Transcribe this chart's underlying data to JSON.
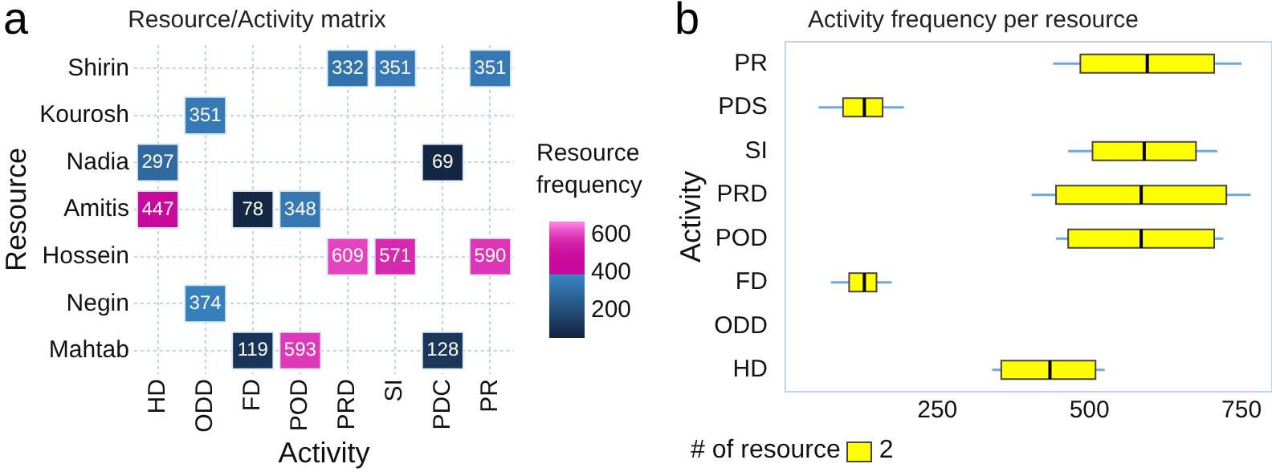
{
  "chart_data": [
    {
      "type": "heatmap",
      "title": "Resource/Activity matrix",
      "xlabel": "Activity",
      "ylabel": "Resource",
      "clabel": "Resource frequency",
      "categories": [
        "HD",
        "ODD",
        "FD",
        "POD",
        "PRD",
        "SI",
        "PDC",
        "PR"
      ],
      "y_categories": [
        "Shirin",
        "Kourosh",
        "Nadia",
        "Amitis",
        "Hossein",
        "Negin",
        "Mahtab"
      ],
      "cells": [
        [
          null,
          null,
          null,
          null,
          332,
          351,
          null,
          351
        ],
        [
          null,
          351,
          null,
          null,
          null,
          null,
          null,
          null
        ],
        [
          297,
          null,
          null,
          null,
          null,
          null,
          69,
          null
        ],
        [
          447,
          null,
          78,
          348,
          null,
          null,
          null,
          null
        ],
        [
          null,
          null,
          null,
          null,
          609,
          571,
          null,
          590
        ],
        [
          null,
          374,
          null,
          null,
          null,
          null,
          null,
          null
        ],
        [
          null,
          null,
          119,
          593,
          null,
          null,
          128,
          null
        ]
      ],
      "clim": [
        60,
        670
      ],
      "cticks": [
        200,
        400,
        600
      ],
      "grid": true,
      "data_labels": true,
      "annotations": [
        "a"
      ]
    },
    {
      "type": "box",
      "title": "Activity frequency per resource",
      "ylabel": "Activity",
      "orientation": "horizontal",
      "categories": [
        "PR",
        "PDS",
        "SI",
        "PRD",
        "POD",
        "FD",
        "ODD",
        "HD"
      ],
      "xlim": [
        0,
        800
      ],
      "xticks": [
        250,
        500,
        750
      ],
      "legend": "bottom",
      "legend_title": "# of resource",
      "annotations": [
        "b"
      ],
      "series": [
        {
          "name": "2",
          "color": "#ffff00",
          "boxes": [
            {
              "low": 440,
              "q1": 485,
              "median": 595,
              "q3": 705,
              "high": 750
            },
            {
              "low": 55,
              "q1": 95,
              "median": 130,
              "q3": 160,
              "high": 195
            },
            {
              "low": 465,
              "q1": 505,
              "median": 590,
              "q3": 675,
              "high": 710
            },
            {
              "low": 405,
              "q1": 445,
              "median": 585,
              "q3": 725,
              "high": 765
            },
            {
              "low": 445,
              "q1": 465,
              "median": 585,
              "q3": 705,
              "high": 720
            },
            {
              "low": 75,
              "q1": 105,
              "median": 130,
              "q3": 150,
              "high": 175
            },
            null,
            {
              "low": 340,
              "q1": 355,
              "median": 435,
              "q3": 510,
              "high": 525
            }
          ]
        }
      ]
    }
  ]
}
